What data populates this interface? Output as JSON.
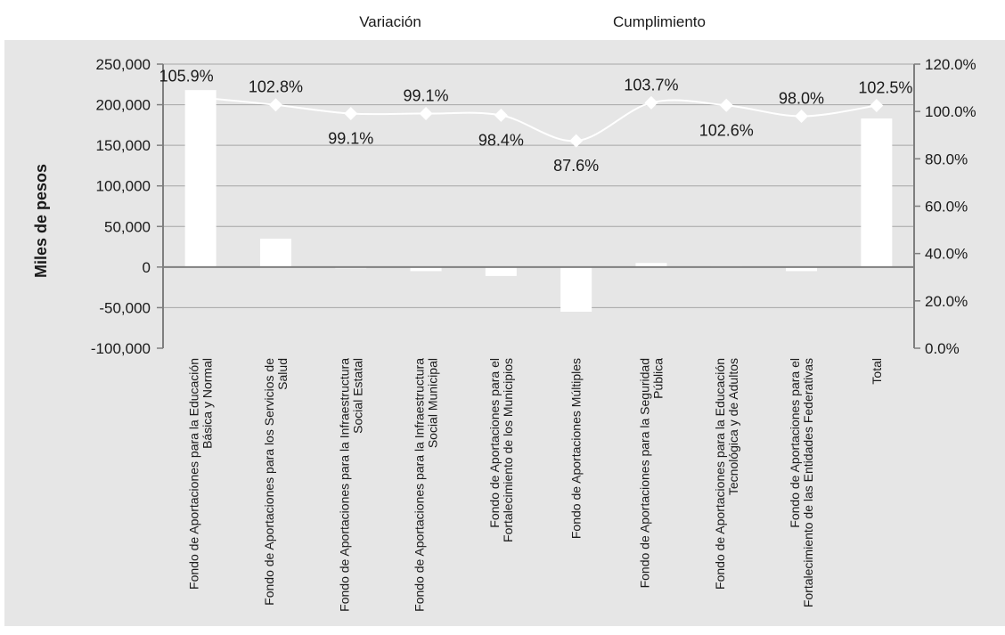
{
  "chart_data": {
    "type": "bar",
    "legend": [
      "Variación",
      "Cumplimiento"
    ],
    "ylabel": "Miles de pesos",
    "ylim": [
      -100000,
      250000
    ],
    "ylim_right": [
      0,
      120
    ],
    "y_ticks": [
      "250,000",
      "200,000",
      "150,000",
      "100,000",
      "50,000",
      "0",
      "-50,000",
      "-100,000"
    ],
    "y2_ticks": [
      "120.0%",
      "100.0%",
      "80.0%",
      "60.0%",
      "40.0%",
      "20.0%",
      "0.0%"
    ],
    "categories": [
      [
        "Fondo de Aportaciones para la Educación",
        "Básica y Normal"
      ],
      [
        "Fondo de Aportaciones para los Servicios de",
        "Salud"
      ],
      [
        "Fondo de Aportaciones para la Infraestructura",
        "Social Estatal"
      ],
      [
        "Fondo de Aportaciones para la Infraestructura",
        "Social Municipal"
      ],
      [
        "Fondo de Aportaciones para el",
        "Fortalecimiento de los Municipios"
      ],
      [
        "Fondo de Aportaciones Múltiples"
      ],
      [
        "Fondo de Aportaciones para la Seguridad",
        "Pública"
      ],
      [
        "Fondo de Aportaciones para la Educación",
        "Tecnológica y de Adultos"
      ],
      [
        "Fondo de Aportaciones para el",
        "Fortalecimiento de las Entidades Federativas"
      ],
      [
        "Total"
      ]
    ],
    "series": [
      {
        "name": "Variación",
        "type": "bar",
        "axis": "left",
        "values": [
          218000,
          35000,
          -1000,
          -5000,
          -11000,
          -55000,
          5000,
          1000,
          -5000,
          183000
        ]
      },
      {
        "name": "Cumplimiento",
        "type": "line",
        "axis": "right",
        "values": [
          105.9,
          102.8,
          99.1,
          99.1,
          98.4,
          87.6,
          103.7,
          102.6,
          98.0,
          102.5
        ],
        "labels": [
          "105.9%",
          "102.8%",
          "99.1%",
          "99.1%",
          "98.4%",
          "87.6%",
          "103.7%",
          "102.6%",
          "98.0%",
          "102.5%"
        ]
      }
    ],
    "grid": true,
    "legend_position": "top",
    "colors": {
      "plot_background": "#e6e6e6",
      "bars": "#ffffff",
      "line": "#ffffff",
      "axis": "#7f7f7f",
      "gridline": "#a6a6a6"
    }
  }
}
